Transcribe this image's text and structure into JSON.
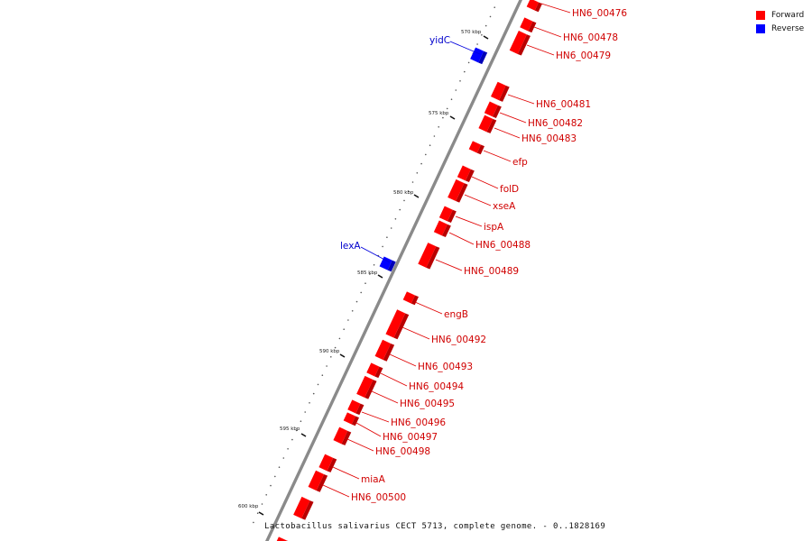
{
  "colors": {
    "forward": "#ff0000",
    "reverse": "#0000ff",
    "backbone": "#8a8a8a"
  },
  "legend": [
    {
      "label": "Forward",
      "color": "#ff0000"
    },
    {
      "label": "Reverse",
      "color": "#0000ff"
    }
  ],
  "caption": "Lactobacillus salivarius CECT 5713, complete genome. - 0..1828169",
  "ticks": [
    "570 kbp",
    "575 kbp",
    "580 kbp",
    "585 kbp",
    "590 kbp",
    "595 kbp",
    "600 kbp"
  ],
  "forward_genes": [
    "HN6_00476",
    "HN6_00478",
    "HN6_00479",
    "HN6_00481",
    "HN6_00482",
    "HN6_00483",
    "efp",
    "folD",
    "xseA",
    "ispA",
    "HN6_00488",
    "HN6_00489",
    "engB",
    "HN6_00492",
    "HN6_00493",
    "HN6_00494",
    "HN6_00495",
    "HN6_00496",
    "HN6_00497",
    "HN6_00498",
    "miaA",
    "HN6_00500"
  ],
  "reverse_genes": [
    "yidC",
    "lexA"
  ]
}
